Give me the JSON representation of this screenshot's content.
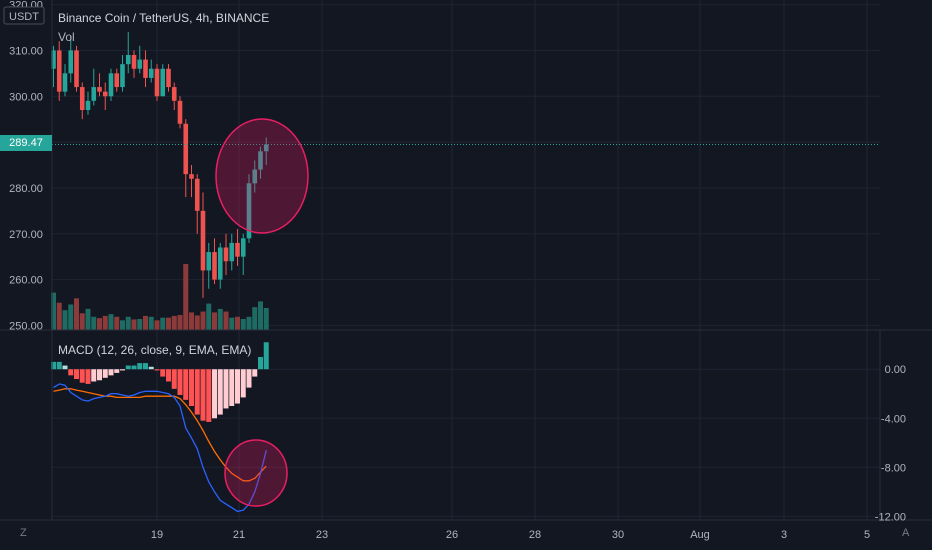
{
  "header": {
    "title": "Binance Coin / TetherUS, 4h, BINANCE",
    "volume_label": "Vol",
    "currency_unit": "USDT",
    "current_price": "289.47"
  },
  "colors": {
    "background": "#131722",
    "up": "#26a69a",
    "down": "#ef5350",
    "macd_line": "#2962ff",
    "signal_line": "#ff6d00",
    "hist_pos_strong": "#26a69a",
    "hist_pos_weak": "#b2dfdb",
    "hist_neg_strong": "#ff5252",
    "hist_neg_weak": "#ffcdd2",
    "annotation": "#e91e63"
  },
  "macd": {
    "label": "MACD (12, 26, close, 9, EMA, EMA)"
  },
  "footer": {
    "left_button": "Z",
    "right_button": "A"
  },
  "chart_data": [
    {
      "type": "candlestick",
      "title": "Binance Coin / TetherUS, 4h, BINANCE",
      "ylabel": "USDT",
      "ylim": [
        249,
        321
      ],
      "y_ticks": [
        "250.00",
        "260.00",
        "270.00",
        "280.00",
        "290.00",
        "300.00",
        "310.00",
        "320.00"
      ],
      "x_ticks": [
        "19",
        "21",
        "23",
        "26",
        "28",
        "30",
        "Aug",
        "3",
        "5"
      ],
      "grid": true,
      "candles": [
        {
          "o": 306,
          "h": 311,
          "l": 302,
          "c": 310
        },
        {
          "o": 310,
          "h": 312,
          "l": 299,
          "c": 301
        },
        {
          "o": 301,
          "h": 307,
          "l": 300,
          "c": 305
        },
        {
          "o": 305,
          "h": 313,
          "l": 303,
          "c": 310
        },
        {
          "o": 310,
          "h": 311,
          "l": 301,
          "c": 302
        },
        {
          "o": 302,
          "h": 303,
          "l": 295,
          "c": 297
        },
        {
          "o": 297,
          "h": 301,
          "l": 296,
          "c": 299
        },
        {
          "o": 299,
          "h": 306,
          "l": 298,
          "c": 302
        },
        {
          "o": 302,
          "h": 305,
          "l": 300,
          "c": 301
        },
        {
          "o": 301,
          "h": 303,
          "l": 297,
          "c": 300
        },
        {
          "o": 300,
          "h": 306,
          "l": 299,
          "c": 305
        },
        {
          "o": 305,
          "h": 306,
          "l": 301,
          "c": 302
        },
        {
          "o": 302,
          "h": 309,
          "l": 301,
          "c": 307
        },
        {
          "o": 307,
          "h": 314,
          "l": 305,
          "c": 309
        },
        {
          "o": 309,
          "h": 310,
          "l": 304,
          "c": 306
        },
        {
          "o": 306,
          "h": 311,
          "l": 305,
          "c": 308
        },
        {
          "o": 308,
          "h": 310,
          "l": 302,
          "c": 304
        },
        {
          "o": 304,
          "h": 308,
          "l": 303,
          "c": 306
        },
        {
          "o": 306,
          "h": 307,
          "l": 299,
          "c": 300
        },
        {
          "o": 300,
          "h": 307,
          "l": 300,
          "c": 306
        },
        {
          "o": 306,
          "h": 307,
          "l": 301,
          "c": 302
        },
        {
          "o": 302,
          "h": 303,
          "l": 297,
          "c": 299
        },
        {
          "o": 299,
          "h": 300,
          "l": 293,
          "c": 294
        },
        {
          "o": 294,
          "h": 295,
          "l": 278,
          "c": 283
        },
        {
          "o": 283,
          "h": 285,
          "l": 278,
          "c": 282
        },
        {
          "o": 282,
          "h": 283,
          "l": 270,
          "c": 275
        },
        {
          "o": 275,
          "h": 279,
          "l": 256,
          "c": 262
        },
        {
          "o": 262,
          "h": 268,
          "l": 258,
          "c": 266
        },
        {
          "o": 266,
          "h": 269,
          "l": 259,
          "c": 260
        },
        {
          "o": 260,
          "h": 268,
          "l": 258,
          "c": 267
        },
        {
          "o": 267,
          "h": 270,
          "l": 261,
          "c": 264
        },
        {
          "o": 264,
          "h": 270,
          "l": 262,
          "c": 268
        },
        {
          "o": 268,
          "h": 271,
          "l": 263,
          "c": 265
        },
        {
          "o": 265,
          "h": 270,
          "l": 261,
          "c": 269
        },
        {
          "o": 269,
          "h": 283,
          "l": 268,
          "c": 281
        },
        {
          "o": 281,
          "h": 286,
          "l": 279,
          "c": 284
        },
        {
          "o": 284,
          "h": 289,
          "l": 282,
          "c": 288
        },
        {
          "o": 288,
          "h": 291,
          "l": 285,
          "c": 289.47
        }
      ],
      "volume": [
        0.85,
        0.62,
        0.45,
        0.58,
        0.72,
        0.38,
        0.48,
        0.3,
        0.27,
        0.32,
        0.36,
        0.3,
        0.22,
        0.3,
        0.24,
        0.25,
        0.32,
        0.3,
        0.22,
        0.28,
        0.28,
        0.32,
        0.34,
        1.5,
        0.4,
        0.33,
        0.42,
        0.6,
        0.4,
        0.48,
        0.42,
        0.28,
        0.3,
        0.25,
        0.3,
        0.52,
        0.65,
        0.5
      ],
      "current_price": 289.47
    },
    {
      "type": "macd",
      "title": "MACD (12, 26, close, 9, EMA, EMA)",
      "ylim": [
        -12.3,
        3.2
      ],
      "y_ticks": [
        "0.00",
        "-4.00",
        "-8.00",
        "-12.00"
      ],
      "histogram": [
        0.6,
        0.6,
        0.3,
        -0.5,
        -0.8,
        -1.1,
        -1.2,
        -1.0,
        -0.9,
        -0.7,
        -0.5,
        -0.3,
        -0.1,
        0.3,
        0.3,
        0.5,
        0.5,
        0.2,
        -0.1,
        -0.6,
        -1.0,
        -1.6,
        -2.1,
        -2.5,
        -3.0,
        -3.7,
        -4.2,
        -4.3,
        -4.0,
        -3.7,
        -3.2,
        -3.0,
        -2.8,
        -2.3,
        -1.5,
        -0.6,
        1.0,
        2.2
      ],
      "macd_line": [
        -1.5,
        -1.2,
        -1.3,
        -1.9,
        -2.2,
        -2.5,
        -2.6,
        -2.4,
        -2.3,
        -2.2,
        -2.0,
        -2.0,
        -2.1,
        -2.2,
        -2.1,
        -1.9,
        -1.8,
        -1.8,
        -1.8,
        -1.9,
        -2.0,
        -2.3,
        -3.0,
        -4.8,
        -5.6,
        -6.5,
        -8.0,
        -9.2,
        -10.0,
        -10.7,
        -11.0,
        -11.3,
        -11.6,
        -11.5,
        -11.0,
        -10.0,
        -8.5,
        -6.6
      ],
      "signal_line": [
        -1.8,
        -1.7,
        -1.6,
        -1.6,
        -1.7,
        -1.8,
        -1.9,
        -2.0,
        -2.1,
        -2.2,
        -2.2,
        -2.3,
        -2.3,
        -2.3,
        -2.3,
        -2.3,
        -2.2,
        -2.2,
        -2.2,
        -2.2,
        -2.2,
        -2.2,
        -2.4,
        -2.9,
        -3.5,
        -4.2,
        -5.0,
        -5.9,
        -6.7,
        -7.4,
        -8.0,
        -8.5,
        -8.8,
        -9.1,
        -9.1,
        -8.9,
        -8.4,
        -7.9
      ]
    }
  ]
}
